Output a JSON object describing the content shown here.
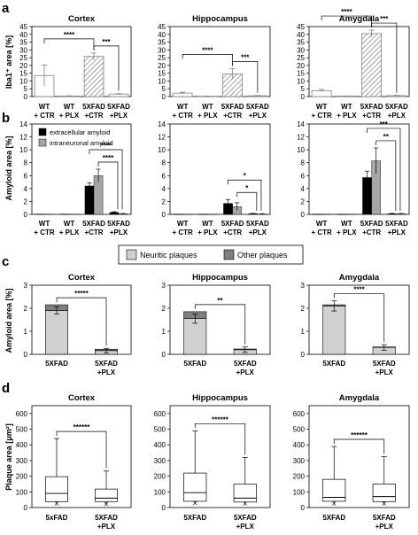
{
  "panel_letters": [
    "a",
    "b",
    "c",
    "d"
  ],
  "legend_b": {
    "extracellular": {
      "label": "extracellular amyloid",
      "color": "#000000"
    },
    "intraneuronal": {
      "label": "intraneuronal amyloid",
      "color": "#a6a6a6"
    }
  },
  "legend_c": {
    "neuritic": {
      "label": "Neuritic plaques",
      "color": "#d0d0d0"
    },
    "other": {
      "label": "Other plaques",
      "color": "#7f7f7f"
    }
  },
  "chart_data": [
    {
      "panel": "a",
      "region": "Cortex",
      "type": "bar",
      "title": "Cortex",
      "ylabel": "Iba1⁺ area [%]",
      "ylim": [
        0,
        45
      ],
      "yticks": [
        0,
        5,
        10,
        15,
        20,
        25,
        30,
        35,
        40,
        45
      ],
      "categories": [
        "WT + CTR",
        "WT + PLX",
        "5XFAD +CTR",
        "5XFAD +PLX"
      ],
      "values": [
        13.5,
        0.3,
        25.8,
        1.6
      ],
      "errors": [
        6.8,
        0.2,
        2.2,
        0.3
      ],
      "significance": [
        {
          "groups": [
            0,
            2
          ],
          "label": "****"
        },
        {
          "groups": [
            2,
            3
          ],
          "label": "***"
        }
      ]
    },
    {
      "panel": "a",
      "region": "Hippocampus",
      "type": "bar",
      "title": "Hippocampus",
      "ylim": [
        0,
        45
      ],
      "yticks": [
        0,
        5,
        10,
        15,
        20,
        25,
        30,
        35,
        40,
        45
      ],
      "categories": [
        "WT + CTR",
        "WT + PLX",
        "5XFAD +CTR",
        "5XFAD +PLX"
      ],
      "values": [
        2.2,
        0.2,
        14.5,
        0.5
      ],
      "errors": [
        0.6,
        0.1,
        3.5,
        0.2
      ],
      "significance": [
        {
          "groups": [
            0,
            2
          ],
          "label": "****"
        },
        {
          "groups": [
            2,
            3
          ],
          "label": "***"
        }
      ]
    },
    {
      "panel": "a",
      "region": "Amygdala",
      "type": "bar",
      "title": "Amygdala",
      "ylim": [
        0,
        45
      ],
      "yticks": [
        0,
        5,
        10,
        15,
        20,
        25,
        30,
        35,
        40,
        45
      ],
      "categories": [
        "WT + CTR",
        "WT + PLX",
        "5XFAD +CTR",
        "5XFAD +PLX"
      ],
      "values": [
        3.8,
        0.3,
        40.5,
        0.6
      ],
      "errors": [
        0.8,
        0.1,
        2.2,
        0.2
      ],
      "significance": [
        {
          "groups": [
            0,
            2
          ],
          "label": "****"
        },
        {
          "groups": [
            2,
            3
          ],
          "label": "***"
        }
      ]
    },
    {
      "panel": "b",
      "region": "Cortex",
      "type": "bar",
      "ylabel": "Amyloid area [%]",
      "ylim": [
        0,
        14
      ],
      "yticks": [
        0,
        2,
        4,
        6,
        8,
        10,
        12,
        14
      ],
      "categories": [
        "WT + CTR",
        "WT + PLX",
        "5XFAD +CTR",
        "5XFAD +PLX"
      ],
      "series": [
        {
          "name": "extracellular amyloid",
          "values": [
            0.05,
            0.05,
            4.4,
            0.3
          ],
          "errors": [
            0,
            0,
            0.5,
            0.1
          ]
        },
        {
          "name": "intraneuronal amyloid",
          "values": [
            0.05,
            0.05,
            6.0,
            0.1
          ],
          "errors": [
            0,
            0,
            1.0,
            0.05
          ]
        }
      ],
      "significance": [
        {
          "groups": [
            2,
            3
          ],
          "label": "****",
          "level": 1
        },
        {
          "groups": [
            2,
            3
          ],
          "label": "****",
          "level": 2
        }
      ]
    },
    {
      "panel": "b",
      "region": "Hippocampus",
      "type": "bar",
      "ylim": [
        0,
        14
      ],
      "yticks": [
        0,
        2,
        4,
        6,
        8,
        10,
        12,
        14
      ],
      "categories": [
        "WT + CTR",
        "WT + PLX",
        "5XFAD +CTR",
        "5XFAD +PLX"
      ],
      "series": [
        {
          "name": "extracellular amyloid",
          "values": [
            0.03,
            0.03,
            1.7,
            0.1
          ],
          "errors": [
            0,
            0,
            0.6,
            0.05
          ]
        },
        {
          "name": "intraneuronal amyloid",
          "values": [
            0.03,
            0.03,
            1.2,
            0.05
          ],
          "errors": [
            0,
            0,
            0.6,
            0.05
          ]
        }
      ],
      "significance": [
        {
          "groups": [
            2,
            3
          ],
          "label": "*",
          "level": 1
        },
        {
          "groups": [
            2,
            3
          ],
          "label": "*",
          "level": 2
        }
      ]
    },
    {
      "panel": "b",
      "region": "Amygdala",
      "type": "bar",
      "ylim": [
        0,
        14
      ],
      "yticks": [
        0,
        2,
        4,
        6,
        8,
        10,
        12,
        14
      ],
      "categories": [
        "WT + CTR",
        "WT + PLX",
        "5XFAD +CTR",
        "5XFAD +PLX"
      ],
      "series": [
        {
          "name": "extracellular amyloid",
          "values": [
            0.03,
            0.03,
            5.7,
            0.1
          ],
          "errors": [
            0,
            0,
            1.0,
            0.05
          ]
        },
        {
          "name": "intraneuronal amyloid",
          "values": [
            0.03,
            0.03,
            8.3,
            0.1
          ],
          "errors": [
            0,
            0,
            2.0,
            0.05
          ]
        }
      ],
      "significance": [
        {
          "groups": [
            2,
            3
          ],
          "label": "***",
          "level": 1
        },
        {
          "groups": [
            2,
            3
          ],
          "label": "**",
          "level": 2
        }
      ]
    },
    {
      "panel": "c",
      "region": "Cortex",
      "type": "bar",
      "stacked": true,
      "title": "Cortex",
      "ylabel": "Amyloid area [%]",
      "ylim": [
        0,
        3
      ],
      "yticks": [
        0,
        1,
        2,
        3
      ],
      "categories": [
        "5XFAD",
        "5XFAD +PLX"
      ],
      "series": [
        {
          "name": "Neuritic plaques",
          "values": [
            1.9,
            0.16
          ]
        },
        {
          "name": "Other plaques",
          "values": [
            0.25,
            0.06
          ]
        }
      ],
      "errors": [
        0.15,
        0.1
      ],
      "significance": [
        {
          "groups": [
            0,
            1
          ],
          "label": "*****"
        }
      ]
    },
    {
      "panel": "c",
      "region": "Hippocampus",
      "type": "bar",
      "stacked": true,
      "title": "Hippocampus",
      "ylim": [
        0,
        3
      ],
      "yticks": [
        0,
        1,
        2,
        3
      ],
      "categories": [
        "5XFAD",
        "5XFAD +PLX"
      ],
      "series": [
        {
          "name": "Neuritic plaques",
          "values": [
            1.55,
            0.2
          ]
        },
        {
          "name": "Other plaques",
          "values": [
            0.3,
            0.03
          ]
        }
      ],
      "errors": [
        0.2,
        0.12
      ],
      "significance": [
        {
          "groups": [
            0,
            1
          ],
          "label": "**"
        }
      ]
    },
    {
      "panel": "c",
      "region": "Amygdala",
      "type": "bar",
      "stacked": true,
      "title": "Amygdala",
      "ylim": [
        0,
        3
      ],
      "yticks": [
        0,
        1,
        2,
        3
      ],
      "categories": [
        "5XFAD",
        "5XFAD +PLX"
      ],
      "series": [
        {
          "name": "Neuritic plaques",
          "values": [
            2.1,
            0.3
          ]
        },
        {
          "name": "Other plaques",
          "values": [
            0.05,
            0.02
          ]
        }
      ],
      "errors": [
        0.22,
        0.12
      ],
      "significance": [
        {
          "groups": [
            0,
            1
          ],
          "label": "****"
        }
      ]
    },
    {
      "panel": "d",
      "region": "Cortex",
      "type": "box",
      "title": "Cortex",
      "ylabel": "Plaque area [μm²]",
      "ylim": [
        0,
        650
      ],
      "yticks": [
        0,
        100,
        200,
        300,
        400,
        500,
        600
      ],
      "categories": [
        "5xFAD",
        "5XFAD +PLX"
      ],
      "boxes": [
        {
          "whislo": 22,
          "q1": 38,
          "med": 90,
          "q3": 197,
          "whishi": 440,
          "mean": 25
        },
        {
          "whislo": 20,
          "q1": 38,
          "med": 60,
          "q3": 118,
          "whishi": 233,
          "mean": 22
        }
      ],
      "significance": [
        {
          "groups": [
            0,
            1
          ],
          "label": "******"
        }
      ]
    },
    {
      "panel": "d",
      "region": "Hippocampus",
      "type": "box",
      "title": "Hippocampus",
      "ylim": [
        0,
        650
      ],
      "yticks": [
        0,
        100,
        200,
        300,
        400,
        500,
        600
      ],
      "categories": [
        "5XFAD",
        "5XFAD +PLX"
      ],
      "boxes": [
        {
          "whislo": 25,
          "q1": 40,
          "med": 95,
          "q3": 220,
          "whishi": 490,
          "mean": 28
        },
        {
          "whislo": 20,
          "q1": 35,
          "med": 60,
          "q3": 150,
          "whishi": 320,
          "mean": 25
        }
      ],
      "significance": [
        {
          "groups": [
            0,
            1
          ],
          "label": "******"
        }
      ]
    },
    {
      "panel": "d",
      "region": "Amygdala",
      "type": "box",
      "title": "Amygdala",
      "ylim": [
        0,
        650
      ],
      "yticks": [
        0,
        100,
        200,
        300,
        400,
        500,
        600
      ],
      "categories": [
        "5XFAD",
        "5XFAD +PLX"
      ],
      "boxes": [
        {
          "whislo": 22,
          "q1": 40,
          "med": 65,
          "q3": 180,
          "whishi": 390,
          "mean": 25
        },
        {
          "whislo": 20,
          "q1": 38,
          "med": 70,
          "q3": 150,
          "whishi": 325,
          "mean": 25
        }
      ],
      "significance": [
        {
          "groups": [
            0,
            1
          ],
          "label": "******"
        }
      ]
    }
  ]
}
